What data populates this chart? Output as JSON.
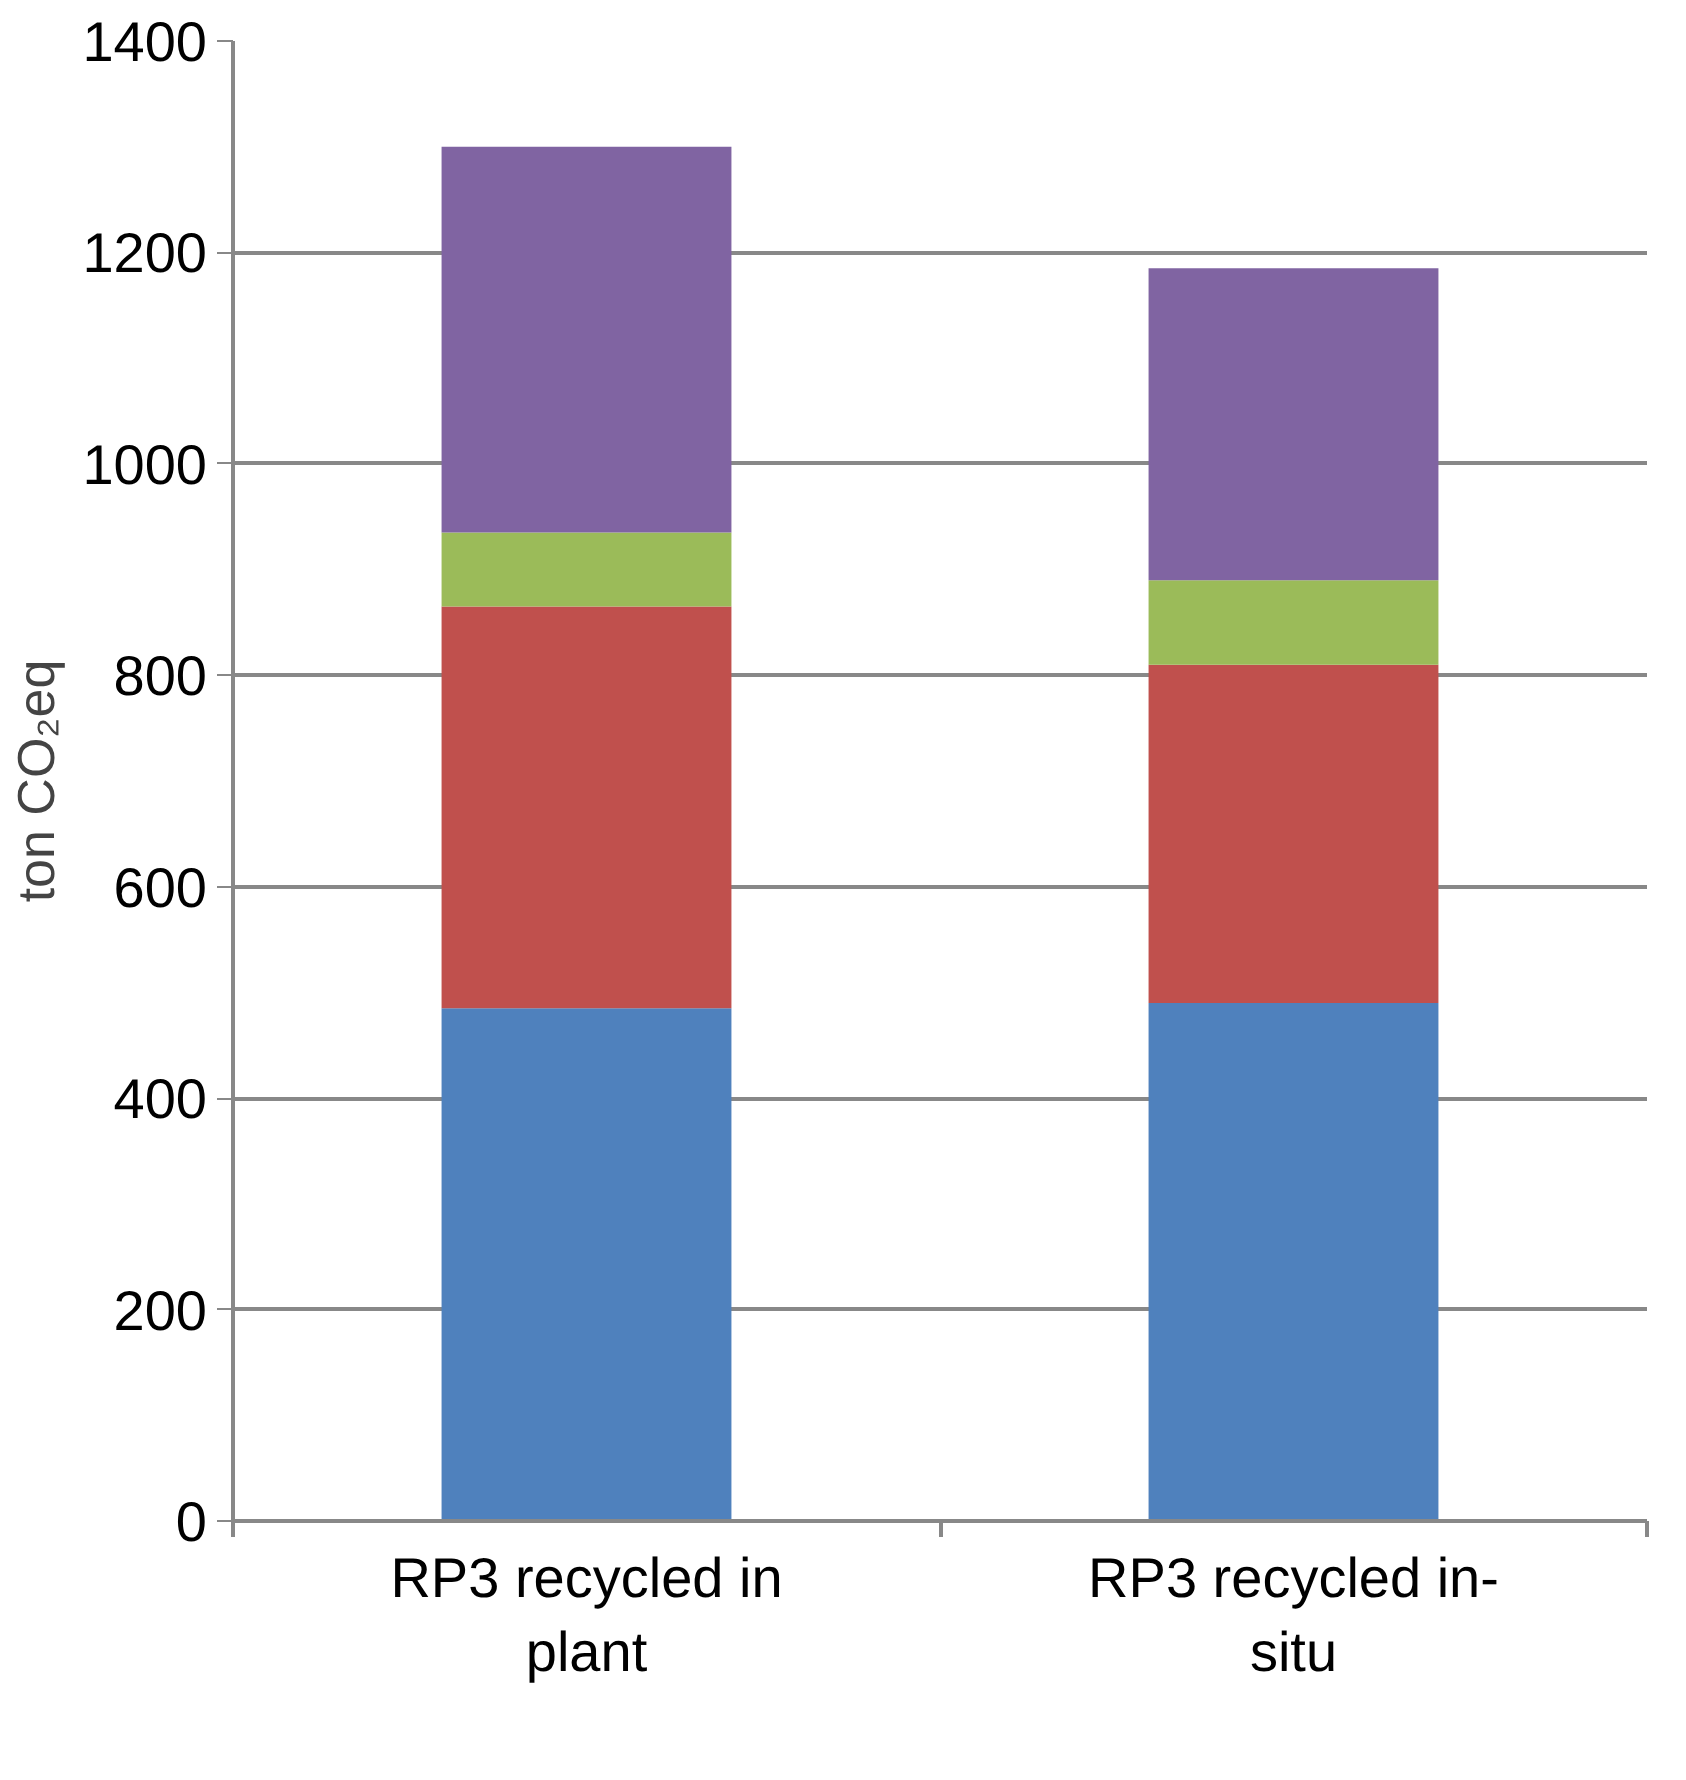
{
  "chart_data": {
    "type": "bar",
    "stacked": true,
    "ylabel": "ton CO₂eq",
    "categories": [
      "RP3 recycled in plant",
      "RP3 recycled in-situ"
    ],
    "series": [
      {
        "color": "#4f81bd",
        "values": [
          485,
          490
        ]
      },
      {
        "color": "#c0504d",
        "values": [
          380,
          320
        ]
      },
      {
        "color": "#9bbb59",
        "values": [
          70,
          80
        ]
      },
      {
        "color": "#8064a2",
        "values": [
          365,
          295
        ]
      }
    ],
    "ylim": [
      0,
      1400
    ],
    "yticks": [
      0,
      200,
      400,
      600,
      800,
      1000,
      1200,
      1400
    ],
    "grid": "y"
  }
}
